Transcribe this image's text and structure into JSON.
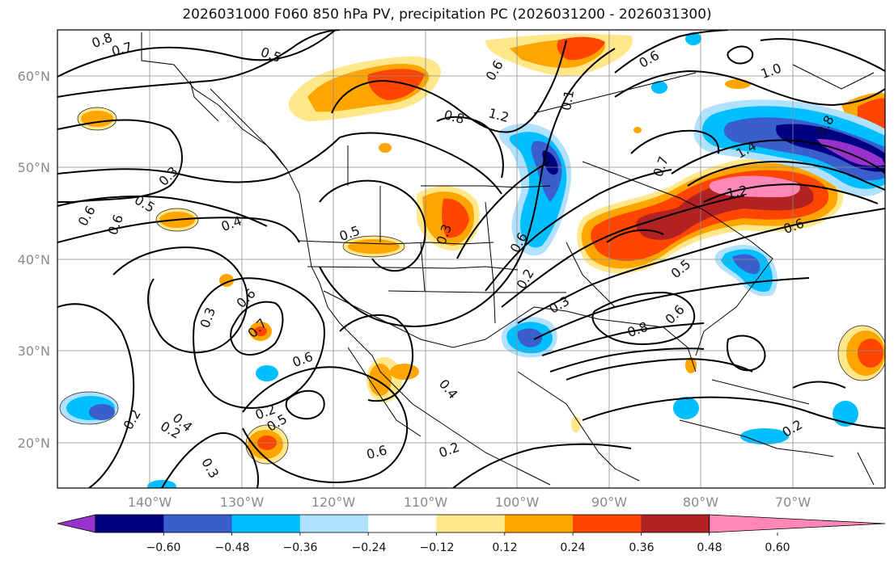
{
  "title": "2026031000 F060 850 hPa PV, precipitation PC (2026031200 - 2026031300)",
  "lat_labels": [
    "60°N",
    "50°N",
    "40°N",
    "30°N",
    "20°N"
  ],
  "lon_labels": [
    "140°W",
    "130°W",
    "120°W",
    "110°W",
    "100°W",
    "90°W",
    "80°W",
    "70°W"
  ],
  "contour_labels": [
    "0.8",
    "0.7",
    "0.5",
    "0.6",
    "0.3",
    "0.4",
    "0.5",
    "0.6",
    "0.2",
    "0.3",
    "0.6",
    "0.7",
    "0.6",
    "0.4",
    "0.3",
    "0.2",
    "0.6",
    "0.3",
    "0.4",
    "0.2",
    "0.5",
    "0.8",
    "1.2",
    "0.6",
    "0.2",
    "0.3",
    "0.6",
    "0.8",
    "0.5",
    "0.6",
    "0.2",
    "1.4",
    "1.2",
    "0.6",
    "1.0",
    "0.8",
    "0.6",
    "0.1",
    "0.7",
    "0.5",
    "0.2"
  ],
  "colorbar": {
    "ticks": [
      "−0.60",
      "−0.48",
      "−0.36",
      "−0.24",
      "−0.12",
      "0.12",
      "0.24",
      "0.36",
      "0.48",
      "0.60"
    ],
    "colors": [
      "#9932cc",
      "#000080",
      "#3a5fcd",
      "#00bfff",
      "#b0e2ff",
      "#ffffff",
      "#ffe78a",
      "#ffa500",
      "#ff4500",
      "#b22222",
      "#ff88b8"
    ]
  },
  "precip_colors": {
    "light_wet": "#b0e2ff",
    "wet": "#00bfff",
    "wetter": "#3a5fcd",
    "wettest": "#000080",
    "extreme_wet": "#9932cc",
    "light_dry": "#ffe78a",
    "dry": "#ffa500",
    "drier": "#ff4500",
    "driest": "#b22222",
    "extreme_dry": "#ff88b8"
  }
}
